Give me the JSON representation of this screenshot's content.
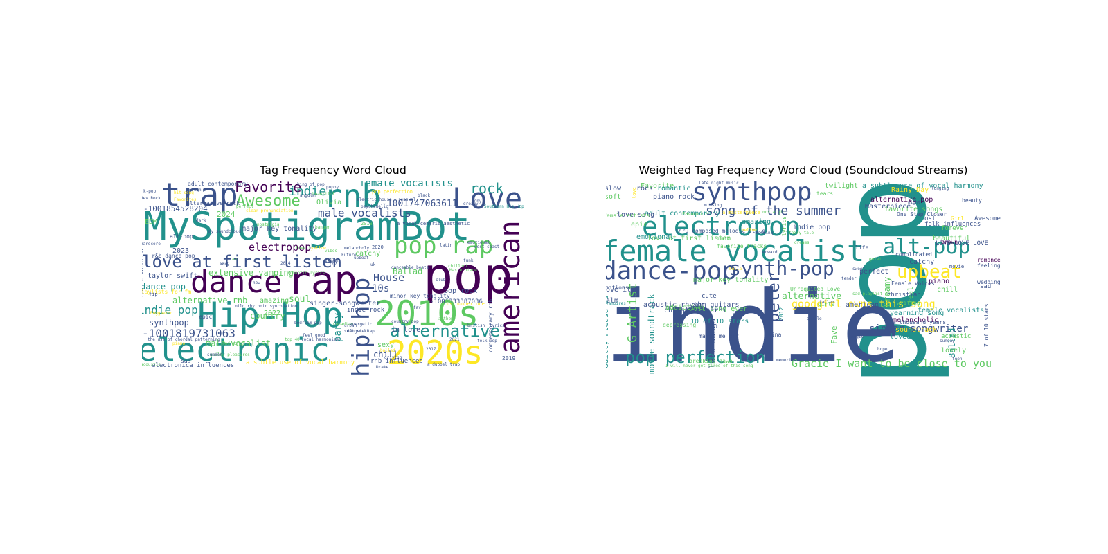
{
  "palette": [
    "#440154",
    "#3b528b",
    "#21918c",
    "#5ec962",
    "#fde725"
  ],
  "chart_data": [
    {
      "type": "wordcloud",
      "title": "Tag Frequency Word Cloud",
      "colormap": "viridis",
      "words": [
        {
          "text": "MySpotigramBot",
          "w": 100
        },
        {
          "text": "pop",
          "w": 78
        },
        {
          "text": "rap",
          "w": 66
        },
        {
          "text": "Hip-Hop",
          "w": 60
        },
        {
          "text": "electronic",
          "w": 58
        },
        {
          "text": "2010s",
          "w": 58
        },
        {
          "text": "2020s",
          "w": 56
        },
        {
          "text": "trap",
          "w": 52
        },
        {
          "text": "dance",
          "w": 52
        },
        {
          "text": "rnb",
          "w": 50
        },
        {
          "text": "Love",
          "w": 48
        },
        {
          "text": "american",
          "w": 46
        },
        {
          "text": "hip hop",
          "w": 42
        },
        {
          "text": "pop rap",
          "w": 40
        },
        {
          "text": "love at first listen",
          "w": 30
        },
        {
          "text": "alternative",
          "w": 28
        },
        {
          "text": "Awesome",
          "w": 26
        },
        {
          "text": "Favorite",
          "w": 24
        },
        {
          "text": "rock",
          "w": 24
        },
        {
          "text": "indie",
          "w": 24
        },
        {
          "text": "female vocalists",
          "w": 20
        },
        {
          "text": "male vocalists",
          "w": 20
        },
        {
          "text": "-1001819731063",
          "w": 18
        },
        {
          "text": "indie pop",
          "w": 18
        },
        {
          "text": "electropop",
          "w": 18
        },
        {
          "text": "House",
          "w": 18
        },
        {
          "text": "party",
          "w": 16
        },
        {
          "text": "-1001747063611",
          "w": 14
        },
        {
          "text": "10s",
          "w": 14
        },
        {
          "text": "Ballad",
          "w": 14
        },
        {
          "text": "dance-pop",
          "w": 13
        },
        {
          "text": "extensive vamping",
          "w": 13
        },
        {
          "text": "alternative rnb",
          "w": 13
        },
        {
          "text": "soul",
          "w": 13
        },
        {
          "text": "chill",
          "w": 13
        },
        {
          "text": "synthpop",
          "w": 12
        },
        {
          "text": "male vocalist",
          "w": 12
        },
        {
          "text": "country",
          "w": 12
        },
        {
          "text": "-1001854528204",
          "w": 11
        },
        {
          "text": "2024",
          "w": 11
        },
        {
          "text": "2023",
          "w": 11
        },
        {
          "text": "2022",
          "w": 11
        },
        {
          "text": "in love",
          "w": 11
        },
        {
          "text": "sexy",
          "w": 11
        },
        {
          "text": "pop rock",
          "w": 10
        },
        {
          "text": "-1001333387036",
          "w": 10
        },
        {
          "text": "singer-songwriter",
          "w": 10
        },
        {
          "text": "amazing",
          "w": 10
        },
        {
          "text": "major key tonality",
          "w": 10
        },
        {
          "text": "taylor swift",
          "w": 10
        },
        {
          "text": "rnb influences",
          "w": 10
        },
        {
          "text": "EDM",
          "w": 10
        },
        {
          "text": "Olivia",
          "w": 10
        },
        {
          "text": "catchy",
          "w": 10
        },
        {
          "text": "indie rock",
          "w": 9
        },
        {
          "text": "alternative rock",
          "w": 9
        },
        {
          "text": "minor key tonality",
          "w": 9
        },
        {
          "text": "electronica influences",
          "w": 9
        },
        {
          "text": "a subtle use of vocal harmony",
          "w": 9
        },
        {
          "text": "adult contemporary",
          "w": 8
        },
        {
          "text": "female vocalist",
          "w": 8
        },
        {
          "text": "alt-pop",
          "w": 8
        },
        {
          "text": "contemporary rnb",
          "w": 8
        },
        {
          "text": "r&b dance pop",
          "w": 8
        },
        {
          "text": "playlists for fm",
          "w": 8
        },
        {
          "text": "2019",
          "w": 8
        },
        {
          "text": "sad",
          "w": 8
        },
        {
          "text": "epic",
          "w": 8
        },
        {
          "text": "a vocal-centric aesthetic",
          "w": 7
        },
        {
          "text": "us number one",
          "w": 7
        },
        {
          "text": "Southern Hip Hop",
          "w": 6
        },
        {
          "text": "2018",
          "w": 7
        },
        {
          "text": "2020",
          "w": 7
        },
        {
          "text": "pop perfection",
          "w": 7
        },
        {
          "text": "electric house",
          "w": 6
        },
        {
          "text": "british",
          "w": 6
        },
        {
          "text": "the use of chordal patterning",
          "w": 6
        },
        {
          "text": "beautiful",
          "w": 6
        },
        {
          "text": "mild rhythmic syncopation",
          "w": 6
        },
        {
          "text": "Gangsta Rap",
          "w": 6
        },
        {
          "text": "fip",
          "w": 7
        },
        {
          "text": "k-pop",
          "w": 6
        },
        {
          "text": "psychedelic",
          "w": 6
        },
        {
          "text": "emotional",
          "w": 6
        },
        {
          "text": "danceable beats",
          "w": 6
        },
        {
          "text": "country pop",
          "w": 6
        },
        {
          "text": "Masterpiece",
          "w": 6
        },
        {
          "text": "Reggaeton",
          "w": 6
        },
        {
          "text": "feel good",
          "w": 6
        },
        {
          "text": "urban",
          "w": 6
        },
        {
          "text": "driving",
          "w": 6
        },
        {
          "text": "folk pop",
          "w": 6
        },
        {
          "text": "soft rock",
          "w": 6
        },
        {
          "text": "happy",
          "w": 6
        },
        {
          "text": "2014",
          "w": 6
        },
        {
          "text": "2017",
          "w": 6
        },
        {
          "text": "2021",
          "w": 6
        },
        {
          "text": "my soundcloud",
          "w": 6
        },
        {
          "text": "black",
          "w": 6
        },
        {
          "text": "latin",
          "w": 6
        },
        {
          "text": "fallen",
          "w": 6
        },
        {
          "text": "sony",
          "w": 6
        },
        {
          "text": "Drake",
          "w": 6
        },
        {
          "text": "acoustic",
          "w": 6
        },
        {
          "text": "fav",
          "w": 6
        },
        {
          "text": "Korean",
          "w": 6
        },
        {
          "text": "Canadian",
          "w": 6
        },
        {
          "text": "nostalgia",
          "w": 6
        },
        {
          "text": "guilty pleasures",
          "w": 6
        },
        {
          "text": "Future",
          "w": 6
        },
        {
          "text": "Favorites",
          "w": 6
        },
        {
          "text": "Rev Rock",
          "w": 6
        },
        {
          "text": "top 40",
          "w": 6
        },
        {
          "text": "romantic lyrics",
          "w": 6
        },
        {
          "text": "clear pronunciation",
          "w": 6
        },
        {
          "text": "king of pop",
          "w": 6
        },
        {
          "text": "poppy",
          "w": 6
        },
        {
          "text": "vocal harmonies",
          "w": 6
        },
        {
          "text": "melancholy",
          "w": 6
        },
        {
          "text": "angular",
          "w": 6
        },
        {
          "text": "west coast",
          "w": 6
        },
        {
          "text": "sad songs",
          "w": 6
        },
        {
          "text": "energetic",
          "w": 6
        },
        {
          "text": "ballad",
          "w": 6
        },
        {
          "text": "a dubbel trap",
          "w": 6
        },
        {
          "text": "hit song",
          "w": 6
        },
        {
          "text": "piano",
          "w": 6
        },
        {
          "text": "sensual",
          "w": 6
        },
        {
          "text": "chillout",
          "w": 6
        },
        {
          "text": "funk",
          "w": 6
        },
        {
          "text": "hardcore",
          "w": 6
        },
        {
          "text": "bedroom pop",
          "w": 6
        },
        {
          "text": "anthem",
          "w": 6
        },
        {
          "text": "summer",
          "w": 6
        },
        {
          "text": "banger",
          "w": 6
        },
        {
          "text": "upbeat",
          "w": 6
        },
        {
          "text": "vibes",
          "w": 6
        },
        {
          "text": "club",
          "w": 6
        },
        {
          "text": "lyrics",
          "w": 6
        },
        {
          "text": "uk",
          "w": 6
        },
        {
          "text": "av",
          "w": 6
        },
        {
          "text": "new",
          "w": 6
        },
        {
          "text": "perfect",
          "w": 6
        },
        {
          "text": "yellow",
          "w": 6
        },
        {
          "text": "dreamy",
          "w": 6
        },
        {
          "text": "love it",
          "w": 6
        },
        {
          "text": "swag",
          "w": 6
        },
        {
          "text": "dark",
          "w": 6
        }
      ]
    },
    {
      "type": "wordcloud",
      "title": "Weighted Tag Frequency Word Cloud (Soundcloud Streams)",
      "colormap": "viridis",
      "words": [
        {
          "text": "pop",
          "w": 100
        },
        {
          "text": "indie",
          "w": 96
        },
        {
          "text": "female vocalist",
          "w": 40
        },
        {
          "text": "electropop",
          "w": 34
        },
        {
          "text": "synthpop",
          "w": 32
        },
        {
          "text": "dance-pop",
          "w": 32
        },
        {
          "text": "alt-pop",
          "w": 28
        },
        {
          "text": "synth-pop",
          "w": 26
        },
        {
          "text": "upbeat",
          "w": 24
        },
        {
          "text": "pop perfection",
          "w": 22
        },
        {
          "text": "peter",
          "w": 22
        },
        {
          "text": "G Artist",
          "w": 18
        },
        {
          "text": "song of the summer",
          "w": 16
        },
        {
          "text": "goodgirl owns this song",
          "w": 14
        },
        {
          "text": "Gracie I want to be close to you",
          "w": 14
        },
        {
          "text": "2010s",
          "w": 12
        },
        {
          "text": "love songs",
          "w": 12
        },
        {
          "text": "singer-songwriter",
          "w": 12
        },
        {
          "text": "Dreamy",
          "w": 12
        },
        {
          "text": "alternative",
          "w": 11
        },
        {
          "text": "movie soundtrack",
          "w": 11
        },
        {
          "text": "Guilty Pleasures",
          "w": 10
        },
        {
          "text": "Ballad",
          "w": 10
        },
        {
          "text": "Fave",
          "w": 10
        },
        {
          "text": "real",
          "w": 10
        },
        {
          "text": "acoustic rhythm guitars",
          "w": 9
        },
        {
          "text": "love at first listen",
          "w": 9
        },
        {
          "text": "major key tonality",
          "w": 9
        },
        {
          "text": "best song ever",
          "w": 9
        },
        {
          "text": "a subtle use of vocal harmony",
          "w": 9
        },
        {
          "text": "alternative pop",
          "w": 9
        },
        {
          "text": "favorite songs",
          "w": 9
        },
        {
          "text": "adult contemporary",
          "w": 9
        },
        {
          "text": "Rainy Day",
          "w": 9
        },
        {
          "text": "Masterpiece",
          "w": 9
        },
        {
          "text": "emotional",
          "w": 9
        },
        {
          "text": "christina perri",
          "w": 9
        },
        {
          "text": "10 of 10 stars",
          "w": 9
        },
        {
          "text": "acoustic",
          "w": 9
        },
        {
          "text": "female vocalists",
          "w": 9
        },
        {
          "text": "soundtrack",
          "w": 9
        },
        {
          "text": "melancholic",
          "w": 9
        },
        {
          "text": "amazing",
          "w": 9
        },
        {
          "text": "beautiful",
          "w": 9
        },
        {
          "text": "chill",
          "w": 9
        },
        {
          "text": "piano",
          "w": 9
        },
        {
          "text": "loved",
          "w": 9
        },
        {
          "text": "lovely",
          "w": 9
        },
        {
          "text": "american",
          "w": 9
        },
        {
          "text": "christian",
          "w": 9
        },
        {
          "text": "yearning song",
          "w": 9
        },
        {
          "text": "indie pop",
          "w": 9
        },
        {
          "text": "twilight",
          "w": 9
        },
        {
          "text": "Favorite",
          "w": 9
        },
        {
          "text": "slow",
          "w": 9
        },
        {
          "text": "soft",
          "w": 9
        },
        {
          "text": "rock",
          "w": 9
        },
        {
          "text": "romantic",
          "w": 9
        },
        {
          "text": "piano rock",
          "w": 9
        },
        {
          "text": "love song",
          "w": 9
        },
        {
          "text": "epic",
          "w": 9
        },
        {
          "text": "Love it",
          "w": 9
        },
        {
          "text": "calm",
          "w": 9
        },
        {
          "text": "addictive",
          "w": 9
        },
        {
          "text": "cute",
          "w": 9
        },
        {
          "text": "catchy",
          "w": 9
        },
        {
          "text": "folk influences",
          "w": 8
        },
        {
          "text": "LOVE LOVE LOVE",
          "w": 8
        },
        {
          "text": "Awesome",
          "w": 8
        },
        {
          "text": "forever",
          "w": 8
        },
        {
          "text": "sad",
          "w": 8
        },
        {
          "text": "Unrequited Love",
          "w": 7
        },
        {
          "text": "thru composed melodic style",
          "w": 7
        },
        {
          "text": "2011",
          "w": 7
        },
        {
          "text": "2012",
          "w": 7
        },
        {
          "text": "breaking dawn",
          "w": 7
        },
        {
          "text": "makes me cry",
          "w": 7
        },
        {
          "text": "Nina",
          "w": 7
        },
        {
          "text": "girls",
          "w": 7
        },
        {
          "text": "depressing",
          "w": 7
        },
        {
          "text": "perfect",
          "w": 8
        },
        {
          "text": "brown",
          "w": 7
        },
        {
          "text": "wedding",
          "w": 7
        },
        {
          "text": "romance",
          "w": 7
        },
        {
          "text": "feeling",
          "w": 7
        },
        {
          "text": "complicated",
          "w": 7
        },
        {
          "text": "a thousand years",
          "w": 7
        },
        {
          "text": "Female Voices",
          "w": 7
        },
        {
          "text": "7 of 10 stars",
          "w": 7
        },
        {
          "text": "One Step Closer",
          "w": 7
        },
        {
          "text": "ost",
          "w": 8
        },
        {
          "text": "beauty",
          "w": 7
        },
        {
          "text": "tears",
          "w": 7
        },
        {
          "text": "life",
          "w": 7
        },
        {
          "text": "Girl",
          "w": 7
        },
        {
          "text": "writing",
          "w": 7
        },
        {
          "text": "favorite tracks",
          "w": 7
        },
        {
          "text": "lyrics",
          "w": 7
        },
        {
          "text": "female artists",
          "w": 7
        },
        {
          "text": "emotions",
          "w": 7
        },
        {
          "text": "vampires",
          "w": 6
        },
        {
          "text": "Favourite",
          "w": 6
        },
        {
          "text": "late night music",
          "w": 6
        },
        {
          "text": "nostalgic",
          "w": 6
        },
        {
          "text": "missing",
          "w": 6
        },
        {
          "text": "movie",
          "w": 6
        },
        {
          "text": "I will never get tired of this song",
          "w": 6
        },
        {
          "text": "a masterpiece",
          "w": 6
        },
        {
          "text": "love",
          "w": 7
        },
        {
          "text": "sad playlist",
          "w": 6
        },
        {
          "text": "fallen",
          "w": 6
        },
        {
          "text": "longing",
          "w": 6
        },
        {
          "text": "heart",
          "w": 6
        },
        {
          "text": "bella",
          "w": 6
        },
        {
          "text": "edward",
          "w": 6
        },
        {
          "text": "dreams",
          "w": 6
        },
        {
          "text": "night",
          "w": 6
        },
        {
          "text": "sweet",
          "w": 6
        },
        {
          "text": "hope",
          "w": 6
        },
        {
          "text": "magic",
          "w": 6
        },
        {
          "text": "rain",
          "w": 6
        },
        {
          "text": "fairy tale",
          "w": 6
        },
        {
          "text": "calming",
          "w": 6
        },
        {
          "text": "gentle",
          "w": 6
        },
        {
          "text": "mellow",
          "w": 6
        },
        {
          "text": "tender",
          "w": 6
        },
        {
          "text": "quiet",
          "w": 6
        },
        {
          "text": "sunday",
          "w": 6
        },
        {
          "text": "memories",
          "w": 6
        },
        {
          "text": "teen",
          "w": 6
        },
        {
          "text": "ethereal",
          "w": 6
        }
      ]
    }
  ]
}
